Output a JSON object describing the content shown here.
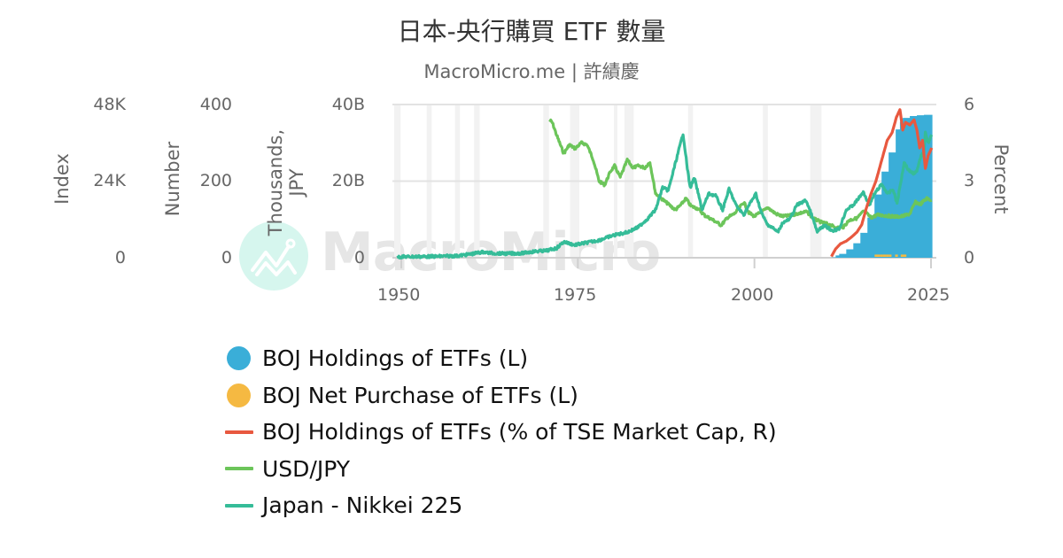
{
  "header": {
    "title": "日本-央行購買 ETF 數量",
    "subtitle": "MacroMicro.me | 許績慶"
  },
  "watermark": {
    "text": "MacroMicro"
  },
  "axes": {
    "index": {
      "title": "Index",
      "ticks": [
        "48K",
        "24K",
        "0"
      ]
    },
    "number": {
      "title": "Number",
      "ticks": [
        "400",
        "200",
        "0"
      ]
    },
    "jpy": {
      "title_line1": "Thousands,",
      "title_line2": "JPY",
      "ticks": [
        "40B",
        "20B",
        "0"
      ]
    },
    "percent": {
      "title": "Percent",
      "ticks": [
        "6",
        "3",
        "0"
      ]
    },
    "x": {
      "ticks": [
        "1950",
        "1975",
        "2000",
        "2025"
      ]
    }
  },
  "legend": [
    {
      "label": "BOJ Holdings of ETFs (L)",
      "color": "#3aaed8",
      "symbol": "dot"
    },
    {
      "label": "BOJ Net Purchase of ETFs (L)",
      "color": "#f5b942",
      "symbol": "dot"
    },
    {
      "label": "BOJ Holdings of ETFs (% of TSE Market Cap, R)",
      "color": "#e8583f",
      "symbol": "line"
    },
    {
      "label": "USD/JPY",
      "color": "#6cc55a",
      "symbol": "line"
    },
    {
      "label": "Japan - Nikkei 225",
      "color": "#35bc98",
      "symbol": "line"
    }
  ],
  "chart_data": {
    "type": "line",
    "title": "日本-央行購買 ETF 數量",
    "subtitle": "MacroMicro.me | 許績慶",
    "xlabel": "",
    "x_ticks": [
      1950,
      1975,
      2000,
      2025
    ],
    "xlim": [
      1949,
      2025.5
    ],
    "grid": true,
    "legend_position": "bottom",
    "recession_bands": [
      [
        1949.0,
        1949.9
      ],
      [
        1953.6,
        1954.3
      ],
      [
        1957.6,
        1958.3
      ],
      [
        1960.3,
        1961.1
      ],
      [
        1970.1,
        1970.9
      ],
      [
        1973.9,
        1975.2
      ],
      [
        1980.1,
        1980.6
      ],
      [
        1981.6,
        1982.9
      ],
      [
        1990.6,
        1991.3
      ],
      [
        2001.2,
        2001.9
      ],
      [
        2007.9,
        2009.5
      ]
    ],
    "y_axes": [
      {
        "id": "index",
        "title": "Index",
        "range": [
          0,
          48000
        ],
        "ticks": [
          "0",
          "24K",
          "48K"
        ],
        "side": "left"
      },
      {
        "id": "number",
        "title": "Number",
        "range": [
          0,
          400
        ],
        "ticks": [
          "0",
          "200",
          "400"
        ],
        "side": "left"
      },
      {
        "id": "jpy",
        "title": "Thousands, JPY",
        "range": [
          0,
          40000000000
        ],
        "ticks": [
          "0",
          "20B",
          "40B"
        ],
        "side": "left"
      },
      {
        "id": "percent",
        "title": "Percent",
        "range": [
          0,
          6
        ],
        "ticks": [
          "0",
          "3",
          "6"
        ],
        "side": "right"
      }
    ],
    "series": [
      {
        "name": "BOJ Holdings of ETFs (L)",
        "type": "area",
        "axis": "jpy",
        "color": "#3aaed8",
        "x": [
          2010.9,
          2011.5,
          2012,
          2013,
          2014,
          2015,
          2016,
          2017,
          2018,
          2019,
          2020,
          2020.6,
          2021,
          2022,
          2023,
          2024,
          2025.2
        ],
        "values": [
          0.1,
          0.6,
          1.0,
          2.2,
          3.8,
          6.5,
          10.5,
          16.5,
          22.5,
          27.5,
          33.5,
          35.5,
          36.5,
          37.0,
          37.2,
          37.3,
          37.3
        ]
      },
      {
        "name": "BOJ Net Purchase of ETFs (L)",
        "type": "bar",
        "axis": "jpy",
        "color": "#f5b942",
        "x": [
          2017.2,
          2017.6,
          2018.0,
          2018.4,
          2018.8,
          2019.2,
          2019.6,
          2020.1,
          2020.5,
          2020.9,
          2021.3
        ],
        "values": [
          0.6,
          0.6,
          0.6,
          0.6,
          0.6,
          0.6,
          0.0,
          0.6,
          0.0,
          0.6,
          0.6
        ]
      },
      {
        "name": "BOJ Holdings of ETFs (% of TSE Market Cap, R)",
        "type": "line",
        "axis": "percent",
        "color": "#e8583f",
        "x": [
          2010.9,
          2011.5,
          2012.2,
          2013,
          2013.7,
          2014.5,
          2015.2,
          2015.8,
          2016.5,
          2017.2,
          2018,
          2018.8,
          2019.5,
          2020.1,
          2020.6,
          2021,
          2021.4,
          2022,
          2022.6,
          2023,
          2023.4,
          2023.8,
          2024.2,
          2024.6,
          2025.1
        ],
        "values": [
          0.05,
          0.35,
          0.55,
          0.65,
          0.8,
          1.0,
          1.3,
          1.9,
          2.5,
          3.0,
          3.8,
          4.6,
          4.9,
          5.5,
          5.8,
          5.0,
          5.3,
          5.2,
          5.4,
          5.0,
          4.3,
          4.6,
          3.5,
          4.0,
          4.3
        ]
      },
      {
        "name": "USD/JPY",
        "type": "line",
        "axis": "number",
        "color": "#6cc55a",
        "x": [
          1971.0,
          1971.4,
          1972.0,
          1973.0,
          1973.8,
          1974.6,
          1975.5,
          1976.3,
          1977.2,
          1978.0,
          1978.8,
          1979.6,
          1980.2,
          1981.0,
          1982.0,
          1982.8,
          1983.6,
          1984.5,
          1985.2,
          1986.0,
          1986.8,
          1987.8,
          1988.8,
          1989.6,
          1990.3,
          1991.0,
          1992.0,
          1993.0,
          1994.0,
          1995.3,
          1996.2,
          1997.2,
          1998.5,
          1999.2,
          2000.0,
          2001.0,
          2002.0,
          2003.0,
          2004.0,
          2005.0,
          2006.0,
          2007.4,
          2008.4,
          2009.4,
          2010.4,
          2011.6,
          2012.6,
          2013.4,
          2014.5,
          2015.5,
          2016.5,
          2017.5,
          2018.5,
          2019.5,
          2020.5,
          2021.3,
          2022.0,
          2022.8,
          2023.5,
          2024.4,
          2025.1
        ],
        "values": [
          360,
          352,
          320,
          272,
          295,
          285,
          300,
          295,
          255,
          200,
          190,
          225,
          240,
          210,
          255,
          235,
          240,
          235,
          250,
          168,
          155,
          140,
          125,
          138,
          155,
          135,
          128,
          110,
          100,
          85,
          105,
          115,
          145,
          118,
          108,
          120,
          130,
          115,
          108,
          110,
          115,
          120,
          102,
          93,
          88,
          78,
          80,
          98,
          103,
          122,
          105,
          112,
          110,
          108,
          107,
          110,
          115,
          145,
          140,
          155,
          150
        ]
      },
      {
        "name": "Japan - Nikkei 225",
        "type": "line",
        "axis": "index",
        "color": "#35bc98",
        "x": [
          1949.5,
          1952,
          1955,
          1958,
          1960,
          1961.5,
          1963,
          1965,
          1967,
          1969,
          1970.5,
          1972,
          1973,
          1974.5,
          1976,
          1978,
          1980,
          1982,
          1983.5,
          1985,
          1986,
          1987,
          1987.8,
          1988.5,
          1989.9,
          1990.5,
          1990.9,
          1991.5,
          1992.6,
          1993.5,
          1994.5,
          1995.5,
          1996.4,
          1997.5,
          1998.5,
          1999.5,
          2000.2,
          2001,
          2001.8,
          2002.5,
          2003.3,
          2004,
          2005,
          2006,
          2007.3,
          2008,
          2008.9,
          2009.5,
          2010,
          2011,
          2012,
          2013,
          2014,
          2015.4,
          2016.3,
          2017,
          2018,
          2018.9,
          2019.6,
          2020.2,
          2020.9,
          2021.2,
          2021.8,
          2022.5,
          2023,
          2023.6,
          2024,
          2024.2,
          2024.6,
          2025.1
        ],
        "values": [
          300,
          350,
          420,
          600,
          1200,
          1800,
          1400,
          1300,
          1400,
          2000,
          2200,
          3000,
          5000,
          4000,
          4600,
          5500,
          7000,
          8000,
          9500,
          12500,
          15000,
          22000,
          21000,
          27000,
          38900,
          28000,
          22000,
          25000,
          15000,
          20000,
          19500,
          15000,
          21500,
          16000,
          13500,
          17500,
          20000,
          14000,
          10500,
          9500,
          8000,
          11000,
          12000,
          16500,
          18000,
          14000,
          8000,
          9500,
          10000,
          8500,
          9000,
          15000,
          16500,
          20500,
          16500,
          20000,
          23000,
          20000,
          21500,
          17000,
          26000,
          30000,
          27500,
          26500,
          27000,
          32000,
          33000,
          39500,
          36000,
          38500
        ]
      }
    ]
  }
}
